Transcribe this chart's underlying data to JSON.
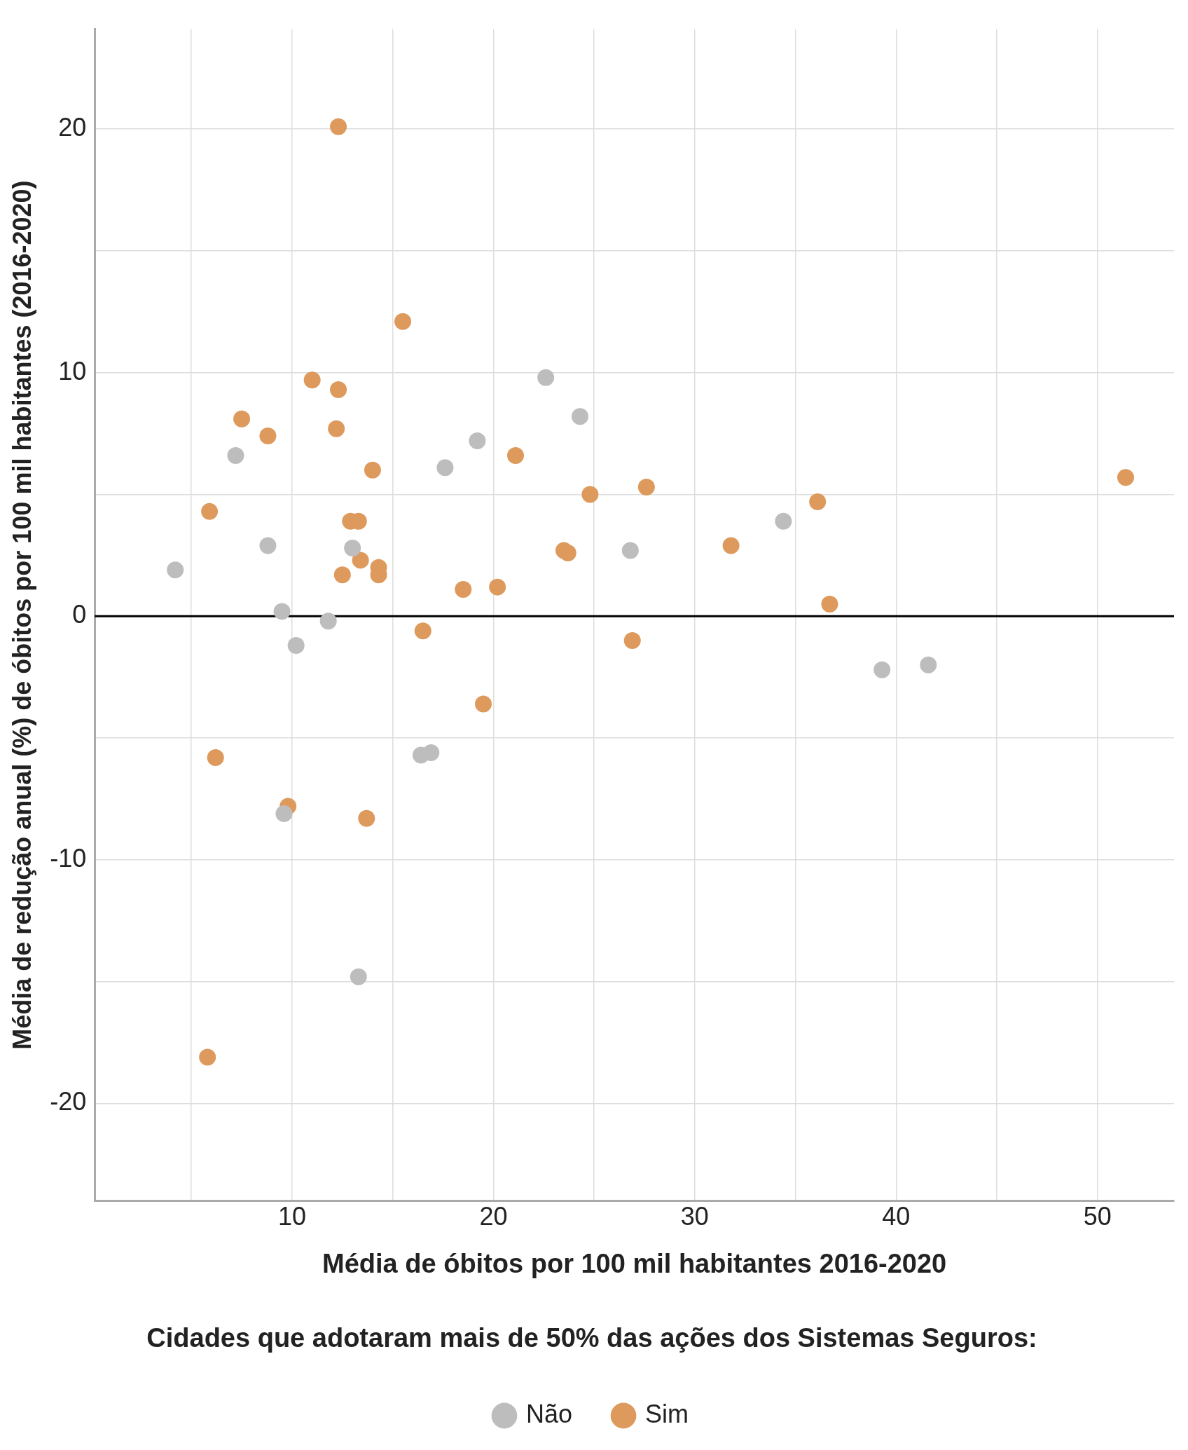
{
  "chart_data": {
    "type": "scatter",
    "xlabel": "Média de óbitos por 100 mil habitantes 2016-2020",
    "ylabel": "Média de redução anual (%) de óbitos por 100 mil habitantes (2016-2020)",
    "legend_title": "Cidades que adotaram mais de 50% das ações dos Sistemas Seguros:",
    "legend": "bottom",
    "grid": true,
    "marker": "circle",
    "xlim": [
      0.2,
      53.8
    ],
    "xticks": [
      {
        "value": 5,
        "label": null
      },
      10,
      {
        "value": 15,
        "label": null
      },
      20,
      {
        "value": 25,
        "label": null
      },
      30,
      {
        "value": 35,
        "label": null
      },
      40,
      {
        "value": 45,
        "label": null
      },
      50
    ],
    "ylim": [
      -24,
      24.1
    ],
    "yticks": [
      -20,
      {
        "value": -15,
        "label": null
      },
      -10,
      {
        "value": -5,
        "label": null
      },
      0,
      {
        "value": 5,
        "label": null
      },
      10,
      {
        "value": 15,
        "label": null
      },
      20
    ],
    "ref_lines": [
      {
        "axis": "y",
        "value": 0,
        "label": null,
        "color": "#000000"
      }
    ],
    "series": [
      {
        "name": "Não",
        "color": "#bdbdbd",
        "x": [
          4.2,
          7.2,
          8.8,
          9.5,
          9.6,
          10.2,
          11.8,
          13,
          13.3,
          16.4,
          16.9,
          17.6,
          19.2,
          22.6,
          24.3,
          26.8,
          34.4,
          39.3,
          41.6
        ],
        "values": [
          1.9,
          6.6,
          2.9,
          0.2,
          -8.1,
          -1.2,
          -0.2,
          2.8,
          -14.8,
          -5.7,
          -5.6,
          6.1,
          7.2,
          9.8,
          8.2,
          2.7,
          3.9,
          -2.2,
          -2
        ]
      },
      {
        "name": "Sim",
        "color": "#dd9a5c",
        "x": [
          12.3,
          15.5,
          11,
          12.3,
          7.5,
          8.8,
          12.2,
          14,
          5.9,
          12.9,
          13.3,
          13.4,
          14.3,
          14.3,
          12.5,
          21.1,
          24.8,
          27.6,
          23.5,
          23.7,
          18.5,
          20.2,
          16.5,
          19.5,
          26.9,
          31.8,
          36.1,
          36.7,
          51.4,
          6.2,
          9.8,
          13.7,
          5.8
        ],
        "values": [
          20.1,
          12.1,
          9.7,
          9.3,
          8.1,
          7.4,
          7.7,
          6,
          4.3,
          3.9,
          3.9,
          2.3,
          2,
          1.7,
          1.7,
          6.6,
          5,
          5.3,
          2.7,
          2.6,
          1.1,
          1.2,
          -0.6,
          -3.6,
          -1,
          2.9,
          4.7,
          0.5,
          5.7,
          -5.8,
          -7.8,
          -8.3,
          -18.1
        ]
      }
    ]
  }
}
